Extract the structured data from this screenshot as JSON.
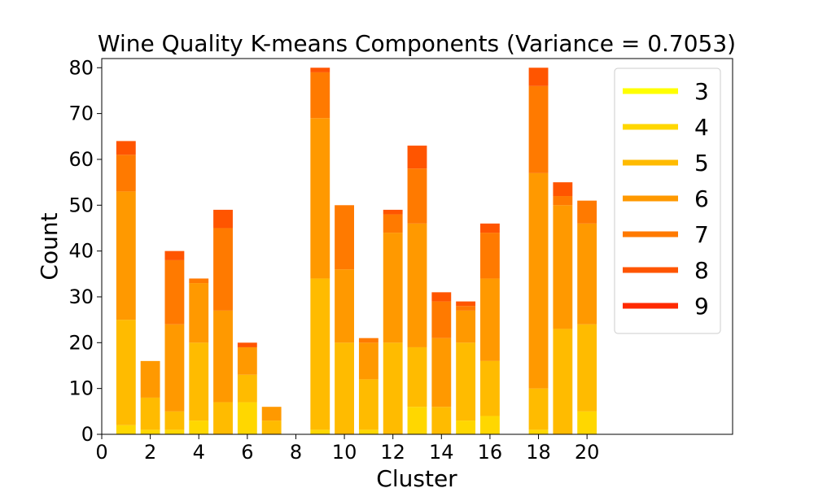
{
  "chart_data": {
    "type": "bar",
    "stacked": true,
    "title": "Wine Quality K-means Components (Variance = 0.7053)",
    "xlabel": "Cluster",
    "ylabel": "Count",
    "xlim": [
      0,
      26
    ],
    "ylim": [
      0,
      82
    ],
    "xticks": [
      0,
      2,
      4,
      6,
      8,
      10,
      12,
      14,
      16,
      18,
      20
    ],
    "yticks": [
      0,
      10,
      20,
      30,
      40,
      50,
      60,
      70,
      80
    ],
    "grid": false,
    "legend_position": "top-right",
    "categories": [
      1,
      2,
      3,
      4,
      5,
      6,
      7,
      8,
      9,
      10,
      11,
      12,
      13,
      14,
      15,
      16,
      17,
      18,
      19,
      20
    ],
    "series": [
      {
        "name": "3",
        "color": "#ffff00",
        "values": [
          0,
          0,
          0,
          0,
          0,
          0,
          0,
          0,
          0,
          0,
          0,
          0,
          0,
          0,
          0,
          0,
          0,
          0,
          0,
          0
        ]
      },
      {
        "name": "4",
        "color": "#ffd700",
        "values": [
          2,
          1,
          1,
          3,
          0,
          7,
          0,
          0,
          1,
          0,
          1,
          0,
          6,
          0,
          3,
          4,
          0,
          1,
          0,
          5
        ]
      },
      {
        "name": "5",
        "color": "#ffbb00",
        "values": [
          23,
          7,
          4,
          17,
          7,
          6,
          3,
          0,
          33,
          20,
          11,
          20,
          13,
          6,
          17,
          12,
          0,
          9,
          23,
          19
        ]
      },
      {
        "name": "6",
        "color": "#ff9900",
        "values": [
          28,
          8,
          19,
          13,
          20,
          6,
          3,
          0,
          35,
          16,
          8,
          24,
          27,
          15,
          7,
          18,
          0,
          47,
          27,
          22
        ]
      },
      {
        "name": "7",
        "color": "#ff7a00",
        "values": [
          8,
          0,
          14,
          1,
          18,
          0,
          0,
          0,
          10,
          14,
          1,
          4,
          12,
          8,
          1,
          10,
          0,
          19,
          2,
          5
        ]
      },
      {
        "name": "8",
        "color": "#ff5500",
        "values": [
          3,
          0,
          2,
          0,
          4,
          1,
          0,
          0,
          1,
          0,
          0,
          1,
          5,
          2,
          1,
          2,
          0,
          4,
          3,
          0
        ]
      },
      {
        "name": "9",
        "color": "#ff2a00",
        "values": [
          0,
          0,
          0,
          0,
          0,
          0,
          0,
          0,
          0,
          0,
          0,
          0,
          0,
          0,
          0,
          0,
          0,
          0,
          0,
          0
        ]
      }
    ]
  }
}
